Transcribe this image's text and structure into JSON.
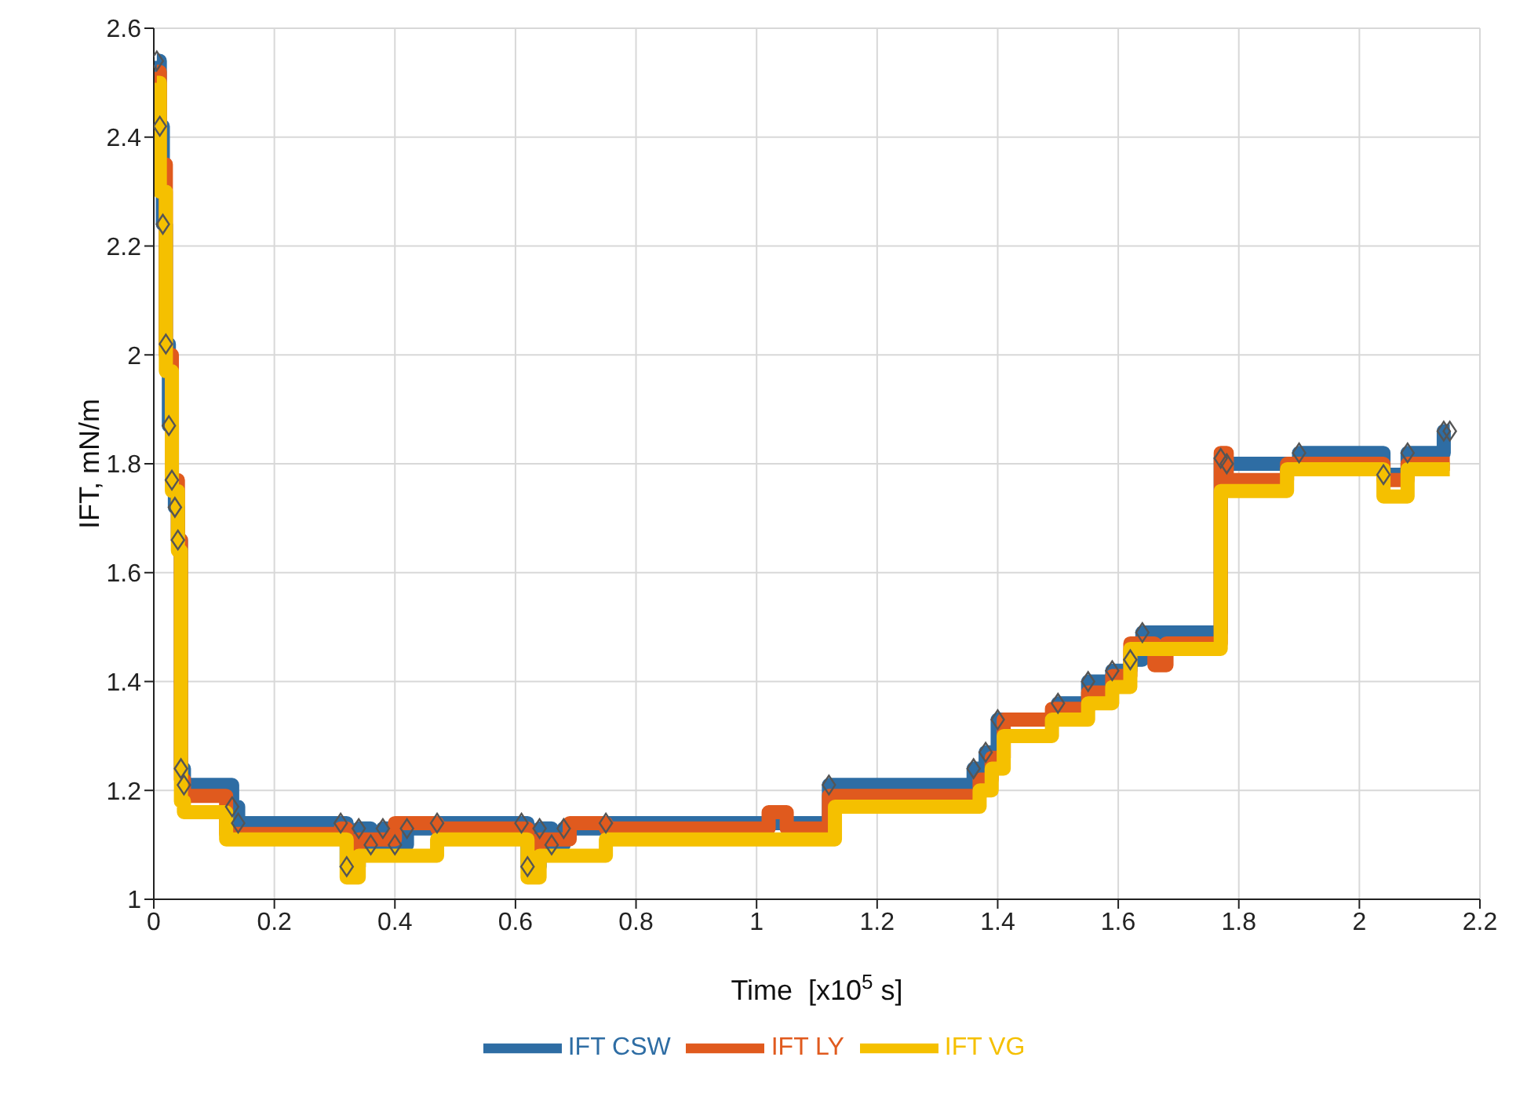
{
  "chart_data": {
    "type": "step",
    "xlabel": "Time  [x10$^{5}$ s]",
    "ylabel": "IFT, mN/m",
    "xlim": [
      0,
      2.2
    ],
    "xticks": [
      0,
      0.2,
      0.4,
      0.6,
      0.8,
      1,
      1.2,
      1.4,
      1.6,
      1.8,
      2,
      2.2
    ],
    "ylim": [
      1,
      2.6
    ],
    "yticks": [
      1,
      1.2,
      1.4,
      1.6,
      1.8,
      2,
      2.2,
      2.4,
      2.6
    ],
    "grid": true,
    "legend": "bottom",
    "line_style": "solid",
    "series": [
      {
        "name": "IFT CSW",
        "color": "#2e6da4",
        "marker": "diamond",
        "x": [
          0.005,
          0.01,
          0.015,
          0.02,
          0.025,
          0.03,
          0.035,
          0.04,
          0.045,
          0.05,
          0.13,
          0.14,
          0.31,
          0.32,
          0.34,
          0.36,
          0.38,
          0.4,
          0.42,
          0.47,
          0.61,
          0.62,
          0.64,
          0.66,
          0.68,
          0.75,
          1.12,
          1.36,
          1.38,
          1.4,
          1.5,
          1.55,
          1.59,
          1.62,
          1.64,
          1.77,
          1.78,
          1.9,
          2.04,
          2.08,
          2.14,
          2.15
        ],
        "values": [
          2.54,
          2.42,
          2.24,
          2.02,
          1.87,
          1.77,
          1.72,
          1.66,
          1.24,
          1.21,
          1.17,
          1.14,
          1.14,
          1.06,
          1.13,
          1.1,
          1.13,
          1.1,
          1.13,
          1.14,
          1.14,
          1.06,
          1.13,
          1.1,
          1.13,
          1.14,
          1.21,
          1.24,
          1.27,
          1.33,
          1.36,
          1.4,
          1.42,
          1.44,
          1.49,
          1.81,
          1.8,
          1.82,
          1.78,
          1.82,
          1.86,
          1.86
        ]
      },
      {
        "name": "IFT LY",
        "color": "#e05a1e",
        "x": [
          0.005,
          0.01,
          0.02,
          0.03,
          0.04,
          0.045,
          0.05,
          0.11,
          0.12,
          0.31,
          0.32,
          0.34,
          0.4,
          0.47,
          0.61,
          0.62,
          0.64,
          0.69,
          0.75,
          1.02,
          1.05,
          1.12,
          1.37,
          1.39,
          1.41,
          1.49,
          1.55,
          1.59,
          1.62,
          1.66,
          1.68,
          1.77,
          1.78,
          1.88,
          2.04,
          2.08,
          2.15
        ],
        "values": [
          2.52,
          2.35,
          2.0,
          1.77,
          1.66,
          1.22,
          1.19,
          1.19,
          1.12,
          1.13,
          1.1,
          1.11,
          1.14,
          1.13,
          1.13,
          1.1,
          1.11,
          1.14,
          1.13,
          1.16,
          1.13,
          1.19,
          1.22,
          1.26,
          1.33,
          1.35,
          1.38,
          1.41,
          1.47,
          1.43,
          1.47,
          1.82,
          1.77,
          1.8,
          1.77,
          1.8,
          1.8
        ]
      },
      {
        "name": "IFT VG",
        "color": "#f5c000",
        "x": [
          0.005,
          0.01,
          0.02,
          0.03,
          0.04,
          0.045,
          0.05,
          0.11,
          0.12,
          0.31,
          0.32,
          0.34,
          0.47,
          0.61,
          0.62,
          0.64,
          0.75,
          1.13,
          1.37,
          1.39,
          1.41,
          1.49,
          1.55,
          1.59,
          1.62,
          1.77,
          1.78,
          1.88,
          2.04,
          2.08,
          2.15
        ],
        "values": [
          2.5,
          2.3,
          1.97,
          1.75,
          1.64,
          1.18,
          1.16,
          1.16,
          1.11,
          1.11,
          1.04,
          1.08,
          1.11,
          1.11,
          1.04,
          1.08,
          1.11,
          1.17,
          1.2,
          1.24,
          1.3,
          1.33,
          1.36,
          1.39,
          1.46,
          1.75,
          1.75,
          1.79,
          1.74,
          1.79,
          1.79
        ]
      }
    ]
  }
}
